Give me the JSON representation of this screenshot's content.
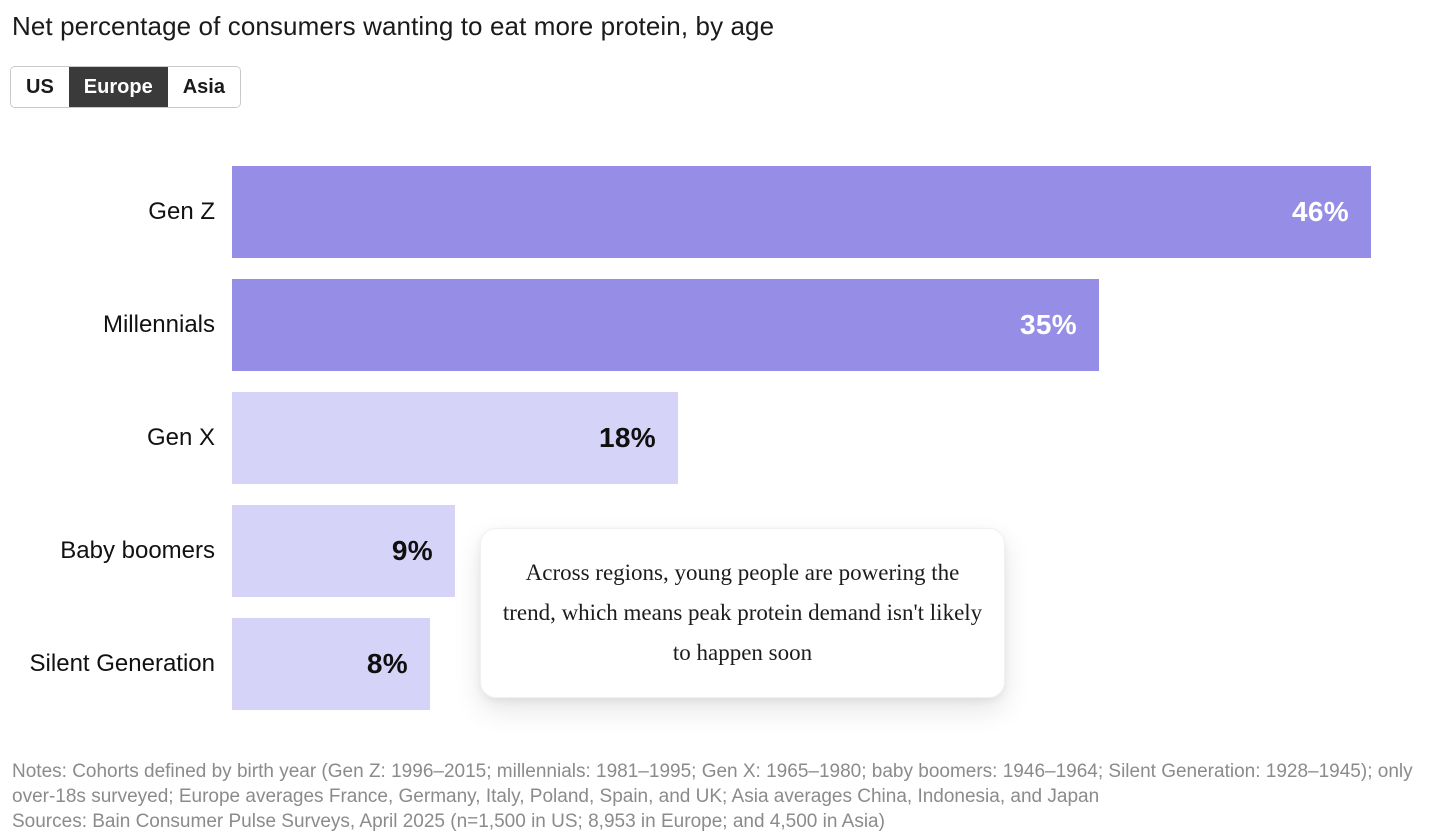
{
  "title": "Net percentage of consumers wanting to eat more protein, by age",
  "tabs": [
    {
      "label": "US",
      "selected": false
    },
    {
      "label": "Europe",
      "selected": true
    },
    {
      "label": "Asia",
      "selected": false
    }
  ],
  "chart_data": {
    "type": "bar",
    "orientation": "horizontal",
    "region_shown": "Europe",
    "categories": [
      "Gen Z",
      "Millennials",
      "Gen X",
      "Baby boomers",
      "Silent Generation"
    ],
    "values": [
      46,
      35,
      18,
      9,
      8
    ],
    "value_labels": [
      "46%",
      "35%",
      "18%",
      "9%",
      "8%"
    ],
    "emphasized": [
      true,
      true,
      false,
      false,
      false
    ],
    "xlim": [
      0,
      46
    ],
    "title": "Net percentage of consumers wanting to eat more protein, by age",
    "xlabel": "",
    "ylabel": "",
    "grid": false,
    "legend": false
  },
  "annotation": {
    "text": "Across regions, young people are powering the trend, which means peak protein demand isn't likely to happen soon"
  },
  "colors": {
    "bar_strong": "#968ee6",
    "bar_light": "#d6d3f8",
    "value_on_strong": "#ffffff",
    "value_on_light": "#0f0f0f",
    "tab_selected_bg": "#3a3a3a",
    "tab_border": "#c9c9c9",
    "notes_text": "#8b8b8b",
    "title_text": "#1a1a1a"
  },
  "footer": {
    "notes": "Notes: Cohorts defined by birth year (Gen Z: 1996–2015; millennials: 1981–1995; Gen X: 1965–1980; baby boomers: 1946–1964; Silent Generation: 1928–1945); only over-18s surveyed; Europe averages France, Germany, Italy, Poland, Spain, and UK; Asia averages China, Indonesia, and Japan",
    "sources": "Sources: Bain Consumer Pulse Surveys, April 2025 (n=1,500 in US; 8,953 in Europe; and 4,500 in Asia)"
  }
}
